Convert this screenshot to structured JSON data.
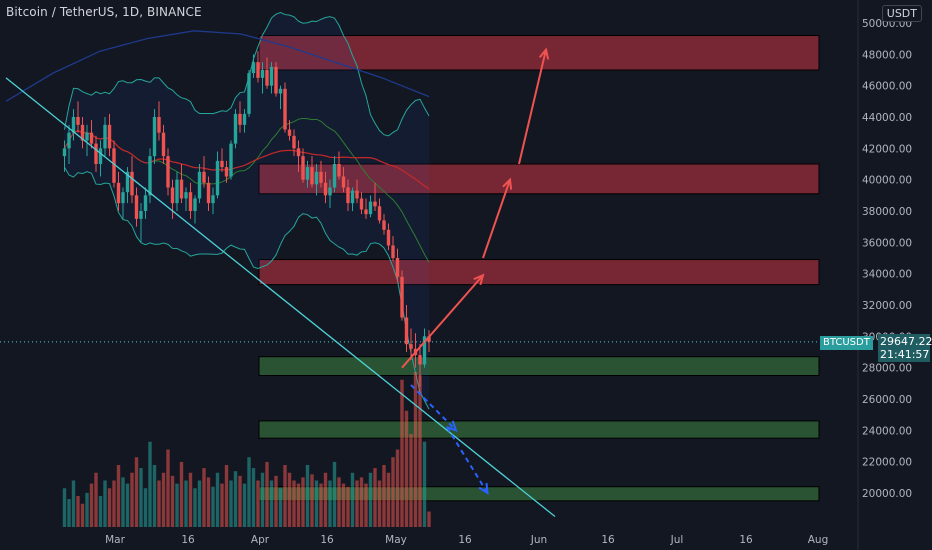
{
  "header": {
    "title": "Bitcoin / TetherUS, 1D, BINANCE",
    "currency": "USDT"
  },
  "price_tag": {
    "symbol": "BTCUSDT",
    "last_price": "29647.22",
    "countdown": "21:41:57"
  },
  "colors": {
    "background": "#131722",
    "bull": "#26a69a",
    "bear": "#ef5350",
    "resistance_zone": "#8a2a36",
    "support_zone": "#2e5e35",
    "trendline": "#4dd0d6",
    "arrow_up": "#ef5350",
    "arrow_down": "#2962ff"
  },
  "chart_data": {
    "type": "candlestick",
    "symbol": "BTCUSDT",
    "interval": "1D",
    "exchange": "BINANCE",
    "y_axis": {
      "ticks": [
        "20000.00",
        "22000.00",
        "24000.00",
        "26000.00",
        "28000.00",
        "30000.00",
        "32000.00",
        "34000.00",
        "36000.00",
        "38000.00",
        "40000.00",
        "42000.00",
        "44000.00",
        "46000.00",
        "48000.00",
        "50000.00"
      ],
      "range": [
        18500,
        51000
      ]
    },
    "x_axis": {
      "ticks": [
        "Mar",
        "16",
        "Apr",
        "16",
        "May",
        "16",
        "Jun",
        "16",
        "Jul",
        "16",
        "Aug"
      ]
    },
    "last_price": 29647.22,
    "candles_ohlc_approx": [
      [
        41500,
        42500,
        40500,
        42000
      ],
      [
        42000,
        43500,
        41000,
        43000
      ],
      [
        43000,
        44500,
        42500,
        44000
      ],
      [
        44000,
        45000,
        43000,
        43500
      ],
      [
        43500,
        44000,
        42000,
        42500
      ],
      [
        42500,
        43500,
        41500,
        43000
      ],
      [
        43000,
        43800,
        42000,
        42300
      ],
      [
        42300,
        42800,
        40500,
        41000
      ],
      [
        41000,
        42500,
        40200,
        42000
      ],
      [
        42000,
        44000,
        41500,
        43500
      ],
      [
        43500,
        44200,
        41500,
        42000
      ],
      [
        42000,
        42500,
        39500,
        39800
      ],
      [
        39800,
        40500,
        38000,
        38500
      ],
      [
        38500,
        39500,
        37500,
        39200
      ],
      [
        39200,
        40800,
        38500,
        40500
      ],
      [
        40500,
        41500,
        38500,
        39000
      ],
      [
        39000,
        39500,
        37000,
        37500
      ],
      [
        37500,
        38500,
        36000,
        38000
      ],
      [
        38000,
        39500,
        37500,
        39000
      ],
      [
        39000,
        42000,
        38500,
        41500
      ],
      [
        41500,
        44500,
        41000,
        44000
      ],
      [
        44000,
        45000,
        42500,
        43000
      ],
      [
        43000,
        43500,
        41000,
        41500
      ],
      [
        41500,
        42000,
        39000,
        39500
      ],
      [
        39500,
        40000,
        37500,
        38500
      ],
      [
        38500,
        40500,
        38000,
        40000
      ],
      [
        40000,
        41000,
        38500,
        38800
      ],
      [
        38800,
        39500,
        38000,
        39200
      ],
      [
        39200,
        39800,
        37500,
        38000
      ],
      [
        38000,
        39000,
        37200,
        38800
      ],
      [
        38800,
        41000,
        38500,
        40500
      ],
      [
        40500,
        41500,
        39500,
        39800
      ],
      [
        39800,
        40200,
        38000,
        38500
      ],
      [
        38500,
        39500,
        37800,
        39000
      ],
      [
        39000,
        41800,
        38800,
        41200
      ],
      [
        41200,
        42000,
        40500,
        40800
      ],
      [
        40800,
        41200,
        39800,
        40200
      ],
      [
        40200,
        42500,
        40000,
        42300
      ],
      [
        42300,
        44500,
        42000,
        44200
      ],
      [
        44200,
        45000,
        43000,
        43500
      ],
      [
        43500,
        44500,
        43000,
        44200
      ],
      [
        44200,
        47000,
        44000,
        46800
      ],
      [
        46800,
        48000,
        46500,
        47500
      ],
      [
        47500,
        48200,
        46200,
        46500
      ],
      [
        46500,
        47500,
        45500,
        47000
      ],
      [
        47000,
        47800,
        45800,
        46000
      ],
      [
        46000,
        47500,
        45500,
        47200
      ],
      [
        47200,
        47500,
        45300,
        45500
      ],
      [
        45500,
        46000,
        44500,
        45800
      ],
      [
        45800,
        46200,
        43000,
        43200
      ],
      [
        43200,
        43800,
        42500,
        42800
      ],
      [
        42800,
        43200,
        41500,
        42000
      ],
      [
        42000,
        42500,
        40500,
        41500
      ],
      [
        41500,
        42000,
        39800,
        40000
      ],
      [
        40000,
        41200,
        39500,
        40800
      ],
      [
        40800,
        41500,
        39500,
        39700
      ],
      [
        39700,
        41000,
        39000,
        40500
      ],
      [
        40500,
        41200,
        39500,
        39800
      ],
      [
        39800,
        40500,
        38500,
        39000
      ],
      [
        39000,
        40000,
        38200,
        39500
      ],
      [
        39500,
        41500,
        39200,
        41000
      ],
      [
        41000,
        41800,
        40000,
        40200
      ],
      [
        40200,
        40800,
        39200,
        39500
      ],
      [
        39500,
        40000,
        38000,
        38500
      ],
      [
        38500,
        39500,
        38000,
        39300
      ],
      [
        39300,
        40000,
        38500,
        38800
      ],
      [
        38800,
        39200,
        37800,
        38100
      ],
      [
        38100,
        38800,
        37500,
        37800
      ],
      [
        37800,
        39000,
        37600,
        38600
      ],
      [
        38600,
        39800,
        38000,
        38300
      ],
      [
        38300,
        38800,
        37200,
        37400
      ],
      [
        37400,
        37800,
        36500,
        36800
      ],
      [
        36800,
        37200,
        35500,
        35800
      ],
      [
        35800,
        36400,
        34800,
        35000
      ],
      [
        35000,
        35600,
        33500,
        33800
      ],
      [
        33800,
        34200,
        31000,
        31200
      ],
      [
        31200,
        32000,
        29000,
        29500
      ],
      [
        29500,
        30500,
        28500,
        29200
      ],
      [
        29200,
        30200,
        28000,
        28800
      ],
      [
        28800,
        29500,
        26800,
        28200
      ],
      [
        28200,
        30500,
        28000,
        30000
      ],
      [
        30000,
        30400,
        29000,
        29647
      ]
    ],
    "volume_relative_approx": [
      0.25,
      0.18,
      0.3,
      0.2,
      0.15,
      0.22,
      0.28,
      0.35,
      0.2,
      0.3,
      0.25,
      0.3,
      0.4,
      0.32,
      0.28,
      0.35,
      0.45,
      0.38,
      0.25,
      0.55,
      0.4,
      0.3,
      0.35,
      0.5,
      0.33,
      0.28,
      0.42,
      0.3,
      0.35,
      0.25,
      0.3,
      0.38,
      0.32,
      0.26,
      0.35,
      0.28,
      0.4,
      0.3,
      0.36,
      0.33,
      0.28,
      0.45,
      0.38,
      0.3,
      0.35,
      0.42,
      0.3,
      0.33,
      0.25,
      0.4,
      0.35,
      0.3,
      0.28,
      0.32,
      0.4,
      0.34,
      0.3,
      0.28,
      0.35,
      0.3,
      0.42,
      0.32,
      0.28,
      0.26,
      0.35,
      0.3,
      0.32,
      0.28,
      0.35,
      0.38,
      0.3,
      0.4,
      0.35,
      0.45,
      0.5,
      0.95,
      0.75,
      0.6,
      1.0,
      0.98,
      0.55,
      0.1
    ],
    "zones": [
      {
        "kind": "resistance",
        "low": 47000,
        "high": 49200
      },
      {
        "kind": "resistance",
        "low": 39100,
        "high": 41000
      },
      {
        "kind": "resistance",
        "low": 33300,
        "high": 34900
      },
      {
        "kind": "support",
        "low": 27500,
        "high": 28700
      },
      {
        "kind": "support",
        "low": 23500,
        "high": 24600
      },
      {
        "kind": "support",
        "low": 19500,
        "high": 20400
      }
    ],
    "projection_up": [
      {
        "from": "2022-05-13",
        "from_price": 28000,
        "to": "2022-05-31",
        "to_price": 33900
      },
      {
        "from": "2022-05-31",
        "from_price": 35000,
        "to": "2022-06-06",
        "to_price": 40000
      },
      {
        "from": "2022-06-08",
        "from_price": 41000,
        "to": "2022-06-14",
        "to_price": 48300
      }
    ],
    "projection_down": [
      {
        "from": "2022-05-15",
        "from_price": 26900,
        "to": "2022-05-25",
        "to_price": 24000
      },
      {
        "from": "2022-05-23",
        "from_price": 24200,
        "to": "2022-06-01",
        "to_price": 20000
      }
    ],
    "trendline": {
      "from": "2022-02-14",
      "from_price": 46500,
      "to": "2022-06-16",
      "to_price": 18500
    },
    "indicators": [
      "Bollinger Bands",
      "Moving Average (red)",
      "Moving Average (blue)"
    ],
    "grid": false
  }
}
